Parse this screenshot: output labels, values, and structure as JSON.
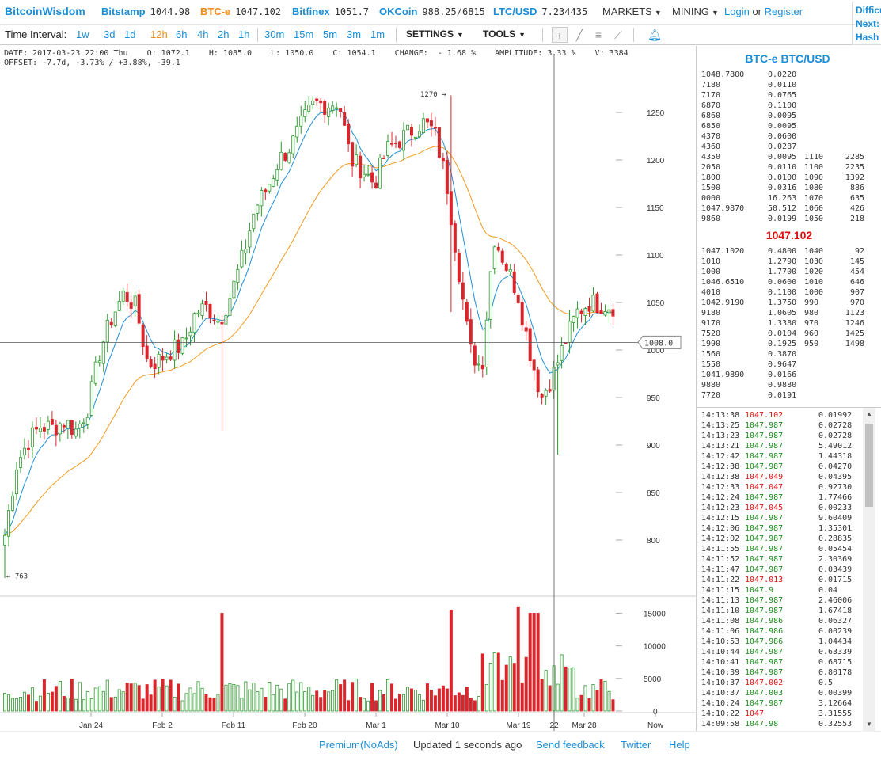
{
  "header": {
    "logo": "BitcoinWisdom",
    "exchanges": [
      {
        "name": "Bitstamp",
        "price": "1044.98",
        "active": false
      },
      {
        "name": "BTC-e",
        "price": "1047.102",
        "active": true
      },
      {
        "name": "Bitfinex",
        "price": "1051.7",
        "active": false
      },
      {
        "name": "OKCoin",
        "price": "988.25/6815",
        "active": false
      },
      {
        "name": "LTC/USD",
        "price": "7.234435",
        "active": false
      }
    ],
    "markets_label": "MARKETS",
    "mining_label": "MINING",
    "login_label": "Login",
    "or_label": "or",
    "register_label": "Register",
    "difficulty_lines": [
      "Difficulty",
      "Next:",
      "Hash"
    ]
  },
  "toolbar": {
    "interval_label": "Time Interval:",
    "intervals": [
      "1w",
      "3d",
      "1d",
      "12h",
      "6h",
      "4h",
      "2h",
      "1h",
      "30m",
      "15m",
      "5m",
      "3m",
      "1m"
    ],
    "active_interval": "12h",
    "settings_label": "SETTINGS",
    "tools_label": "TOOLS"
  },
  "info": {
    "line1": "DATE: 2017-03-23 22:00 Thu    O: 1072.1    H: 1085.0    L: 1050.0    C: 1054.1    CHANGE:  - 1.68 %    AMPLITUDE: 3.33 %    V: 3384",
    "line2": "OFFSET: -7.7d, -3.73% / +3.88%, -39.1"
  },
  "chart_data": {
    "type": "candlestick",
    "price_axis_ticks": [
      1250,
      1200,
      1150,
      1100,
      1050,
      1000,
      950,
      900,
      850,
      800
    ],
    "volume_axis_ticks": [
      15000,
      10000,
      5000,
      0
    ],
    "x_tick_labels": [
      "Jan 24",
      "Feb 2",
      "Feb 11",
      "Feb 20",
      "Mar 1",
      "Mar 10",
      "Mar 19",
      "22",
      "Mar 28",
      "Now"
    ],
    "crosshair_price": "1008.0",
    "high_label": "1270 →",
    "low_label": "← 763",
    "y_range": [
      745,
      1295
    ],
    "volume_range": [
      0,
      17000
    ],
    "colors": {
      "up": "#2c9a2c",
      "down": "#d9262c",
      "ema_short": "#1f8fd6",
      "ema_long": "#f29a1e"
    },
    "ohlc_path": [
      805,
      880,
      905,
      920,
      918,
      925,
      915,
      940,
      1000,
      1035,
      1060,
      1045,
      985,
      990,
      1000,
      1005,
      1040,
      1045,
      1030,
      1060,
      1100,
      1150,
      1170,
      1200,
      1215,
      1240,
      1260,
      1258,
      1262,
      1200,
      1190,
      1175,
      1210,
      1220,
      1230,
      1240,
      1230,
      1180,
      1090,
      1000,
      980,
      1120,
      1090,
      1060,
      1000,
      950,
      975,
      1010,
      1040,
      1050,
      1048,
      1046
    ],
    "volume_spikes": {
      "45": 15000,
      "90": 15500,
      "100": 16000
    }
  },
  "orderbook": {
    "title": "BTC-e BTC/USD",
    "asks": [
      [
        "1048.7800",
        "0.0220",
        "",
        ""
      ],
      [
        "7180",
        "0.0110",
        "",
        ""
      ],
      [
        "7170",
        "0.0765",
        "",
        ""
      ],
      [
        "6870",
        "0.1100",
        "",
        ""
      ],
      [
        "6860",
        "0.0095",
        "",
        ""
      ],
      [
        "6850",
        "0.0095",
        "",
        ""
      ],
      [
        "4370",
        "0.0600",
        "",
        ""
      ],
      [
        "4360",
        "0.0287",
        "",
        ""
      ],
      [
        "4350",
        "0.0095",
        "1110",
        "2285"
      ],
      [
        "2050",
        "0.0110",
        "1100",
        "2235"
      ],
      [
        "1800",
        "0.0100",
        "1090",
        "1392"
      ],
      [
        "1500",
        "0.0316",
        "1080",
        "886"
      ],
      [
        "0000",
        "16.263",
        "1070",
        "635"
      ],
      [
        "1047.9870",
        "50.512",
        "1060",
        "426"
      ],
      [
        "9860",
        "0.0199",
        "1050",
        "218"
      ]
    ],
    "last_price": "1047.102",
    "bids": [
      [
        "1047.1020",
        "0.4800",
        "1040",
        "92"
      ],
      [
        "1010",
        "1.2790",
        "1030",
        "145"
      ],
      [
        "1000",
        "1.7700",
        "1020",
        "454"
      ],
      [
        "1046.6510",
        "0.0600",
        "1010",
        "646"
      ],
      [
        "4010",
        "0.1100",
        "1000",
        "907"
      ],
      [
        "1042.9190",
        "1.3750",
        "990",
        "970"
      ],
      [
        "9180",
        "1.0605",
        "980",
        "1123"
      ],
      [
        "9170",
        "1.3380",
        "970",
        "1246"
      ],
      [
        "7520",
        "0.0104",
        "960",
        "1425"
      ],
      [
        "1990",
        "0.1925",
        "950",
        "1498"
      ],
      [
        "1560",
        "0.3870",
        "",
        ""
      ],
      [
        "1550",
        "0.9647",
        "",
        ""
      ],
      [
        "1041.9890",
        "0.0166",
        "",
        ""
      ],
      [
        "9880",
        "0.9880",
        "",
        ""
      ],
      [
        "7720",
        "0.0191",
        "",
        ""
      ]
    ]
  },
  "trades": [
    [
      "14:13:38",
      "1047.102",
      "0.01992",
      "down"
    ],
    [
      "14:13:25",
      "1047.987",
      "0.02728",
      "up"
    ],
    [
      "14:13:23",
      "1047.987",
      "0.02728",
      "up"
    ],
    [
      "14:13:21",
      "1047.987",
      "5.49012",
      "up"
    ],
    [
      "14:12:42",
      "1047.987",
      "1.44318",
      "up"
    ],
    [
      "14:12:38",
      "1047.987",
      "0.04270",
      "up"
    ],
    [
      "14:12:38",
      "1047.049",
      "0.04395",
      "down"
    ],
    [
      "14:12:33",
      "1047.047",
      "0.92730",
      "down"
    ],
    [
      "14:12:24",
      "1047.987",
      "1.77466",
      "up"
    ],
    [
      "14:12:23",
      "1047.045",
      "0.00233",
      "down"
    ],
    [
      "14:12:15",
      "1047.987",
      "9.60409",
      "up"
    ],
    [
      "14:12:06",
      "1047.987",
      "1.35301",
      "up"
    ],
    [
      "14:12:02",
      "1047.987",
      "0.28835",
      "up"
    ],
    [
      "14:11:55",
      "1047.987",
      "0.05454",
      "up"
    ],
    [
      "14:11:52",
      "1047.987",
      "2.30369",
      "up"
    ],
    [
      "14:11:47",
      "1047.987",
      "0.03439",
      "up"
    ],
    [
      "14:11:22",
      "1047.013",
      "0.01715",
      "down"
    ],
    [
      "14:11:15",
      "1047.9",
      "0.04",
      "up"
    ],
    [
      "14:11:13",
      "1047.987",
      "2.46006",
      "up"
    ],
    [
      "14:11:10",
      "1047.987",
      "1.67418",
      "up"
    ],
    [
      "14:11:08",
      "1047.986",
      "0.06327",
      "up"
    ],
    [
      "14:11:06",
      "1047.986",
      "0.00239",
      "up"
    ],
    [
      "14:10:53",
      "1047.986",
      "1.04434",
      "up"
    ],
    [
      "14:10:44",
      "1047.987",
      "0.63339",
      "up"
    ],
    [
      "14:10:41",
      "1047.987",
      "0.68715",
      "up"
    ],
    [
      "14:10:39",
      "1047.987",
      "0.80178",
      "up"
    ],
    [
      "14:10:37",
      "1047.002",
      "0.5",
      "down"
    ],
    [
      "14:10:37",
      "1047.003",
      "0.00399",
      "up"
    ],
    [
      "14:10:24",
      "1047.987",
      "3.12664",
      "up"
    ],
    [
      "14:10:22",
      "1047",
      "3.31555",
      "down"
    ],
    [
      "14:09:58",
      "1047.98",
      "0.32553",
      "up"
    ]
  ],
  "footer": {
    "premium": "Premium(NoAds)",
    "updated": "Updated 1 seconds ago",
    "feedback": "Send feedback",
    "twitter": "Twitter",
    "help": "Help"
  }
}
